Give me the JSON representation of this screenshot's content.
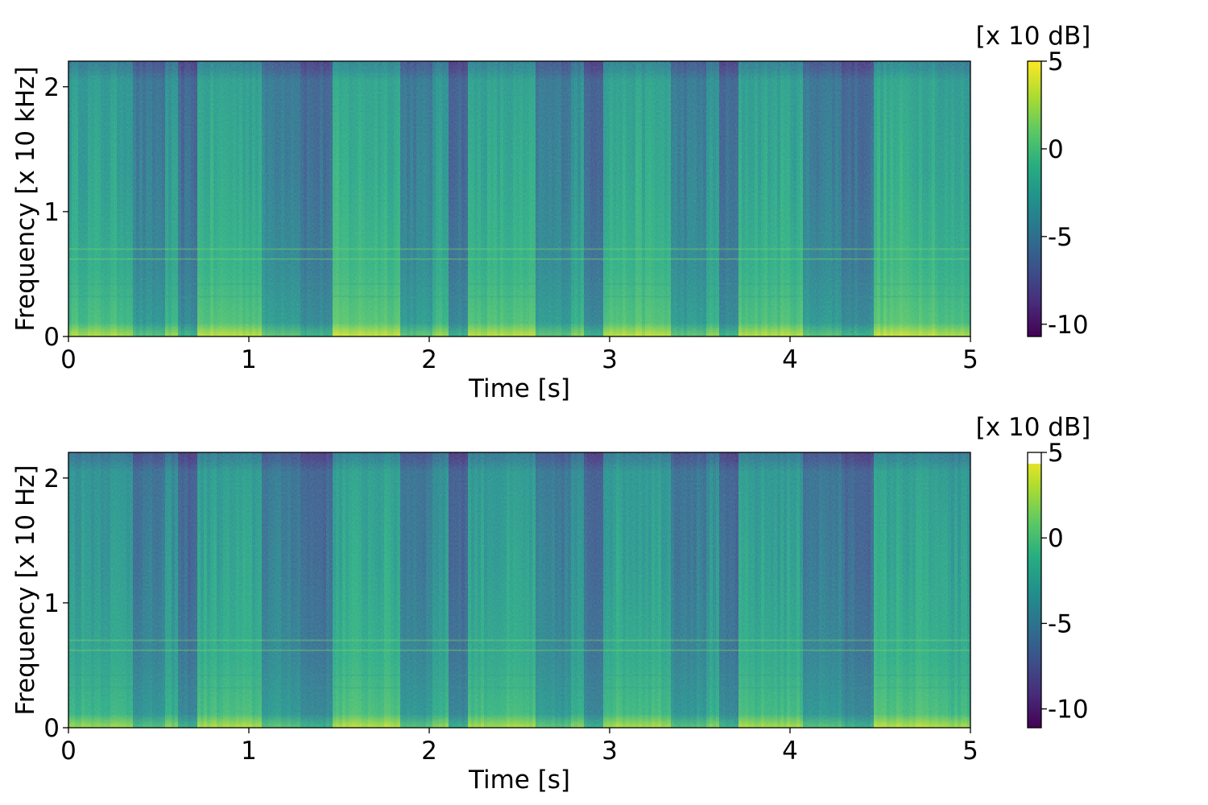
{
  "chart_data": [
    {
      "type": "heatmap",
      "colormap": "viridis",
      "x": {
        "label": "Time [s]",
        "range": [
          0,
          5
        ],
        "ticks": [
          0,
          1,
          2,
          3,
          4,
          5
        ],
        "tick_labels": [
          "0",
          "1",
          "2",
          "3",
          "4",
          "5"
        ]
      },
      "y": {
        "label": "Frequency [x 10 kHz]",
        "range": [
          0,
          2.205
        ],
        "ticks": [
          0,
          1,
          2
        ],
        "tick_labels": [
          "0",
          "1",
          "2"
        ]
      },
      "colorbar": {
        "label": "[x 10 dB]",
        "range": [
          -10.7,
          5
        ],
        "ticks": [
          5,
          0,
          -5,
          -10
        ],
        "tick_labels": [
          "5",
          "0",
          "-5",
          "-10"
        ],
        "white_cap": false
      },
      "segments": [
        {
          "start": 0.0,
          "end": 0.35,
          "level": 0.55
        },
        {
          "start": 0.35,
          "end": 0.53,
          "level": 0.38
        },
        {
          "start": 0.53,
          "end": 0.6,
          "level": 0.5
        },
        {
          "start": 0.6,
          "end": 0.72,
          "level": 0.32
        },
        {
          "start": 0.72,
          "end": 1.08,
          "level": 0.58
        },
        {
          "start": 1.08,
          "end": 1.28,
          "level": 0.42
        },
        {
          "start": 1.28,
          "end": 1.46,
          "level": 0.33
        },
        {
          "start": 1.46,
          "end": 1.84,
          "level": 0.6
        },
        {
          "start": 1.84,
          "end": 2.02,
          "level": 0.4
        },
        {
          "start": 2.02,
          "end": 2.1,
          "level": 0.52
        },
        {
          "start": 2.1,
          "end": 2.22,
          "level": 0.32
        },
        {
          "start": 2.22,
          "end": 2.59,
          "level": 0.57
        },
        {
          "start": 2.59,
          "end": 2.78,
          "level": 0.4
        },
        {
          "start": 2.78,
          "end": 2.85,
          "level": 0.5
        },
        {
          "start": 2.85,
          "end": 2.96,
          "level": 0.32
        },
        {
          "start": 2.96,
          "end": 3.34,
          "level": 0.58
        },
        {
          "start": 3.34,
          "end": 3.53,
          "level": 0.4
        },
        {
          "start": 3.53,
          "end": 3.6,
          "level": 0.5
        },
        {
          "start": 3.6,
          "end": 3.72,
          "level": 0.32
        },
        {
          "start": 3.72,
          "end": 4.08,
          "level": 0.57
        },
        {
          "start": 4.08,
          "end": 4.28,
          "level": 0.4
        },
        {
          "start": 4.28,
          "end": 4.46,
          "level": 0.33
        },
        {
          "start": 4.46,
          "end": 4.83,
          "level": 0.6
        },
        {
          "start": 4.83,
          "end": 5.0,
          "level": 0.55
        }
      ]
    },
    {
      "type": "heatmap",
      "colormap": "viridis",
      "x": {
        "label": "Time [s]",
        "range": [
          0,
          5
        ],
        "ticks": [
          0,
          1,
          2,
          3,
          4,
          5
        ],
        "tick_labels": [
          "0",
          "1",
          "2",
          "3",
          "4",
          "5"
        ]
      },
      "y": {
        "label": "Frequency [x 10 Hz]",
        "range": [
          0,
          2.205
        ],
        "ticks": [
          0,
          1,
          2
        ],
        "tick_labels": [
          "0",
          "1",
          "2"
        ]
      },
      "colorbar": {
        "label": "[x 10 dB]",
        "range": [
          -11.1,
          5
        ],
        "ticks": [
          5,
          0,
          -5,
          -10
        ],
        "tick_labels": [
          "5",
          "0",
          "-5",
          "-10"
        ],
        "white_cap": true
      },
      "segments": [
        {
          "start": 0.0,
          "end": 0.35,
          "level": 0.52
        },
        {
          "start": 0.35,
          "end": 0.53,
          "level": 0.37
        },
        {
          "start": 0.53,
          "end": 0.6,
          "level": 0.48
        },
        {
          "start": 0.6,
          "end": 0.72,
          "level": 0.31
        },
        {
          "start": 0.72,
          "end": 1.08,
          "level": 0.55
        },
        {
          "start": 1.08,
          "end": 1.28,
          "level": 0.4
        },
        {
          "start": 1.28,
          "end": 1.46,
          "level": 0.32
        },
        {
          "start": 1.46,
          "end": 1.84,
          "level": 0.57
        },
        {
          "start": 1.84,
          "end": 2.02,
          "level": 0.39
        },
        {
          "start": 2.02,
          "end": 2.1,
          "level": 0.5
        },
        {
          "start": 2.1,
          "end": 2.22,
          "level": 0.31
        },
        {
          "start": 2.22,
          "end": 2.59,
          "level": 0.54
        },
        {
          "start": 2.59,
          "end": 2.78,
          "level": 0.39
        },
        {
          "start": 2.78,
          "end": 2.85,
          "level": 0.48
        },
        {
          "start": 2.85,
          "end": 2.96,
          "level": 0.31
        },
        {
          "start": 2.96,
          "end": 3.34,
          "level": 0.55
        },
        {
          "start": 3.34,
          "end": 3.53,
          "level": 0.39
        },
        {
          "start": 3.53,
          "end": 3.6,
          "level": 0.48
        },
        {
          "start": 3.6,
          "end": 3.72,
          "level": 0.31
        },
        {
          "start": 3.72,
          "end": 4.08,
          "level": 0.54
        },
        {
          "start": 4.08,
          "end": 4.28,
          "level": 0.39
        },
        {
          "start": 4.28,
          "end": 4.46,
          "level": 0.32
        },
        {
          "start": 4.46,
          "end": 4.83,
          "level": 0.57
        },
        {
          "start": 4.83,
          "end": 5.0,
          "level": 0.53
        }
      ]
    }
  ]
}
